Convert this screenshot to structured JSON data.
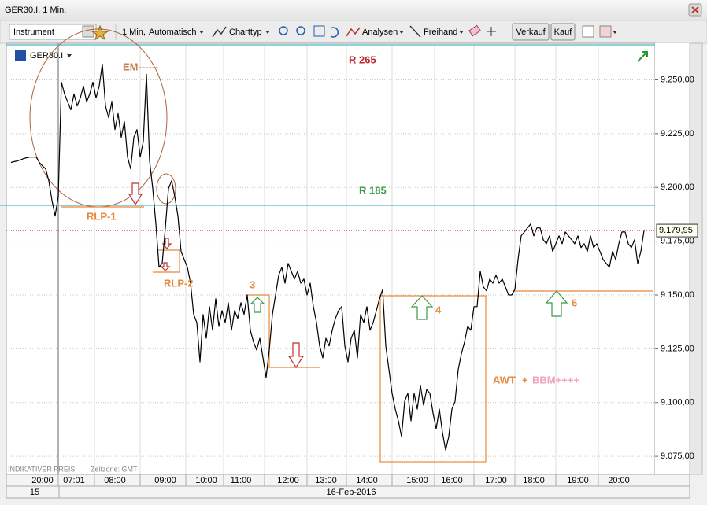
{
  "window_title": "GER30.I, 1 Min.",
  "toolbar": {
    "instrument": "Instrument",
    "interval": "1 Min,",
    "mode": "Automatisch",
    "chart_type": "Charttyp",
    "analyses": "Analysen",
    "freehand": "Freihand",
    "sell": "Verkauf",
    "buy": "Kauf"
  },
  "symbol": "GER30.I",
  "footer": {
    "price_kind": "INDIKATIVER PREIS",
    "timezone": "Zeitzone: GMT"
  },
  "date_row": [
    "15",
    "16-Feb-2016"
  ],
  "chart_data": {
    "type": "line",
    "color": "#000000",
    "categories": [
      null,
      null,
      null,
      null,
      null,
      null,
      null,
      null,
      null,
      null,
      "20:00",
      null,
      null,
      null,
      null,
      null,
      null,
      null,
      null,
      null,
      "07:01",
      null,
      null,
      null,
      null,
      null,
      null,
      null,
      null,
      null,
      null,
      null,
      null,
      "08:00",
      null,
      null,
      null,
      null,
      null,
      null,
      null,
      null,
      null,
      null,
      null,
      null,
      null,
      null,
      null,
      "09:00",
      null,
      null,
      null,
      null,
      null,
      null,
      null,
      null,
      null,
      null,
      null,
      null,
      "10:00",
      null,
      null,
      null,
      null,
      null,
      null,
      null,
      null,
      null,
      null,
      "11:00",
      null,
      null,
      null,
      null,
      null,
      null,
      null,
      null,
      null,
      null,
      null,
      null,
      null,
      null,
      "12:00",
      null,
      null,
      null,
      null,
      null,
      null,
      null,
      null,
      null,
      null,
      null,
      "13:00",
      null,
      null,
      null,
      null,
      null,
      null,
      null,
      null,
      null,
      null,
      null,
      null,
      "14:00",
      null,
      null,
      null,
      null,
      null,
      null,
      null,
      null,
      null,
      null,
      null,
      null,
      null,
      null,
      null,
      "15:00",
      null,
      null,
      null,
      null,
      null,
      null,
      null,
      null,
      null,
      null,
      "16:00",
      null,
      null,
      null,
      null,
      null,
      null,
      null,
      null,
      null,
      null,
      null,
      null,
      null,
      "17:00",
      null,
      null,
      null,
      null,
      null,
      null,
      null,
      null,
      null,
      null,
      null,
      "18:00",
      null,
      null,
      null,
      null,
      null,
      null,
      null,
      null,
      null,
      null,
      null,
      null,
      null,
      "19:00",
      null,
      null,
      null,
      null,
      null,
      null,
      null,
      null,
      null,
      null,
      null,
      null,
      "20:00",
      null,
      null,
      null,
      null,
      null,
      null,
      null,
      null
    ],
    "values": [
      9211.6,
      9212.0,
      9212.3,
      9212.8,
      9213.4,
      9213.8,
      9214.1,
      9214.1,
      9214.1,
      9211.6,
      9210.0,
      9208.6,
      9203.0,
      9194.0,
      9186.7,
      9195.8,
      9248.9,
      9243.4,
      9239.7,
      9236.1,
      9243.4,
      9237.9,
      9241.6,
      9247.1,
      9239.7,
      9243.4,
      9248.9,
      9241.6,
      9247.1,
      9257.3,
      9237.9,
      9232.4,
      9239.7,
      9226.9,
      9234.3,
      9223.3,
      9230.6,
      9214.1,
      9208.6,
      9223.3,
      9226.9,
      9214.1,
      9221.4,
      9252.6,
      9212.3,
      9199.5,
      9183.0,
      9162.9,
      9164.7,
      9181.2,
      9199.5,
      9203.1,
      9195.8,
      9186.7,
      9170.2,
      9166.5,
      9162.9,
      9155.5,
      9140.9,
      9137.2,
      9118.9,
      9140.9,
      9129.9,
      9144.6,
      9133.6,
      9148.2,
      9135.4,
      9142.7,
      9137.2,
      9146.4,
      9133.6,
      9142.7,
      9139.1,
      9146.4,
      9141.0,
      9150.0,
      9133.6,
      9128.1,
      9124.4,
      9129.9,
      9120.8,
      9111.6,
      9124.4,
      9140.9,
      9150.0,
      9159.2,
      9162.9,
      9155.5,
      9164.7,
      9161.0,
      9157.4,
      9161.0,
      9155.5,
      9157.4,
      9150.0,
      9155.5,
      9144.6,
      9137.2,
      9126.3,
      9120.8,
      9129.9,
      9126.3,
      9133.6,
      9139.1,
      9142.7,
      9144.6,
      9126.3,
      9118.9,
      9129.9,
      9133.6,
      9120.8,
      9140.9,
      9137.2,
      9144.6,
      9133.6,
      9137.2,
      9142.7,
      9148.2,
      9152.6,
      9126.3,
      9115.3,
      9104.3,
      9097.0,
      9091.5,
      9084.2,
      9100.6,
      9104.3,
      9091.5,
      9104.3,
      9097.0,
      9107.9,
      9098.8,
      9106.1,
      9104.3,
      9095.1,
      9087.8,
      9097.0,
      9086.0,
      9077.9,
      9084.2,
      9097.0,
      9100.6,
      9115.3,
      9122.6,
      9128.1,
      9135.4,
      9133.6,
      9144.6,
      9144.6,
      9161.0,
      9153.7,
      9151.9,
      9157.4,
      9155.5,
      9159.2,
      9155.5,
      9157.4,
      9153.7,
      9150.0,
      9150.0,
      9152.6,
      9166.5,
      9177.5,
      9179.3,
      9181.2,
      9183.0,
      9177.5,
      9181.2,
      9181.2,
      9175.7,
      9173.8,
      9177.5,
      9170.2,
      9173.8,
      9177.5,
      9173.8,
      9179.3,
      9177.5,
      9175.7,
      9173.8,
      9177.5,
      9172.0,
      9173.8,
      9170.2,
      9177.5,
      9172.0,
      9173.8,
      9170.2,
      9166.5,
      9164.7,
      9162.9,
      9170.2,
      9166.5,
      9173.8,
      9179.3,
      9179.3,
      9173.8,
      9172.0,
      9175.7,
      9164.7,
      9170.2,
      9179.9
    ],
    "ylim": [
      9067,
      9267
    ],
    "yticks": [
      {
        "value": 9075,
        "label": "9.075,00"
      },
      {
        "value": 9100,
        "label": "9.100,00"
      },
      {
        "value": 9125,
        "label": "9.125,00"
      },
      {
        "value": 9150,
        "label": "9.150,00"
      },
      {
        "value": 9175,
        "label": "9.175,00"
      },
      {
        "value": 9200,
        "label": "9.200,00"
      },
      {
        "value": 9225,
        "label": "9.225,00"
      },
      {
        "value": 9250,
        "label": "9.250,00"
      }
    ],
    "grid": true,
    "last_price": {
      "value": 9179.95,
      "label": "9.179,95"
    },
    "annotations": {
      "r265": "R 265",
      "r185": "R 185",
      "em": "EM------",
      "rlp1": "RLP-1",
      "rlp2": "RLP-2",
      "n3": "3",
      "n4": "4",
      "n6": "6",
      "awt": "AWT",
      "plus": "+",
      "bbm": "BBM++++"
    }
  }
}
